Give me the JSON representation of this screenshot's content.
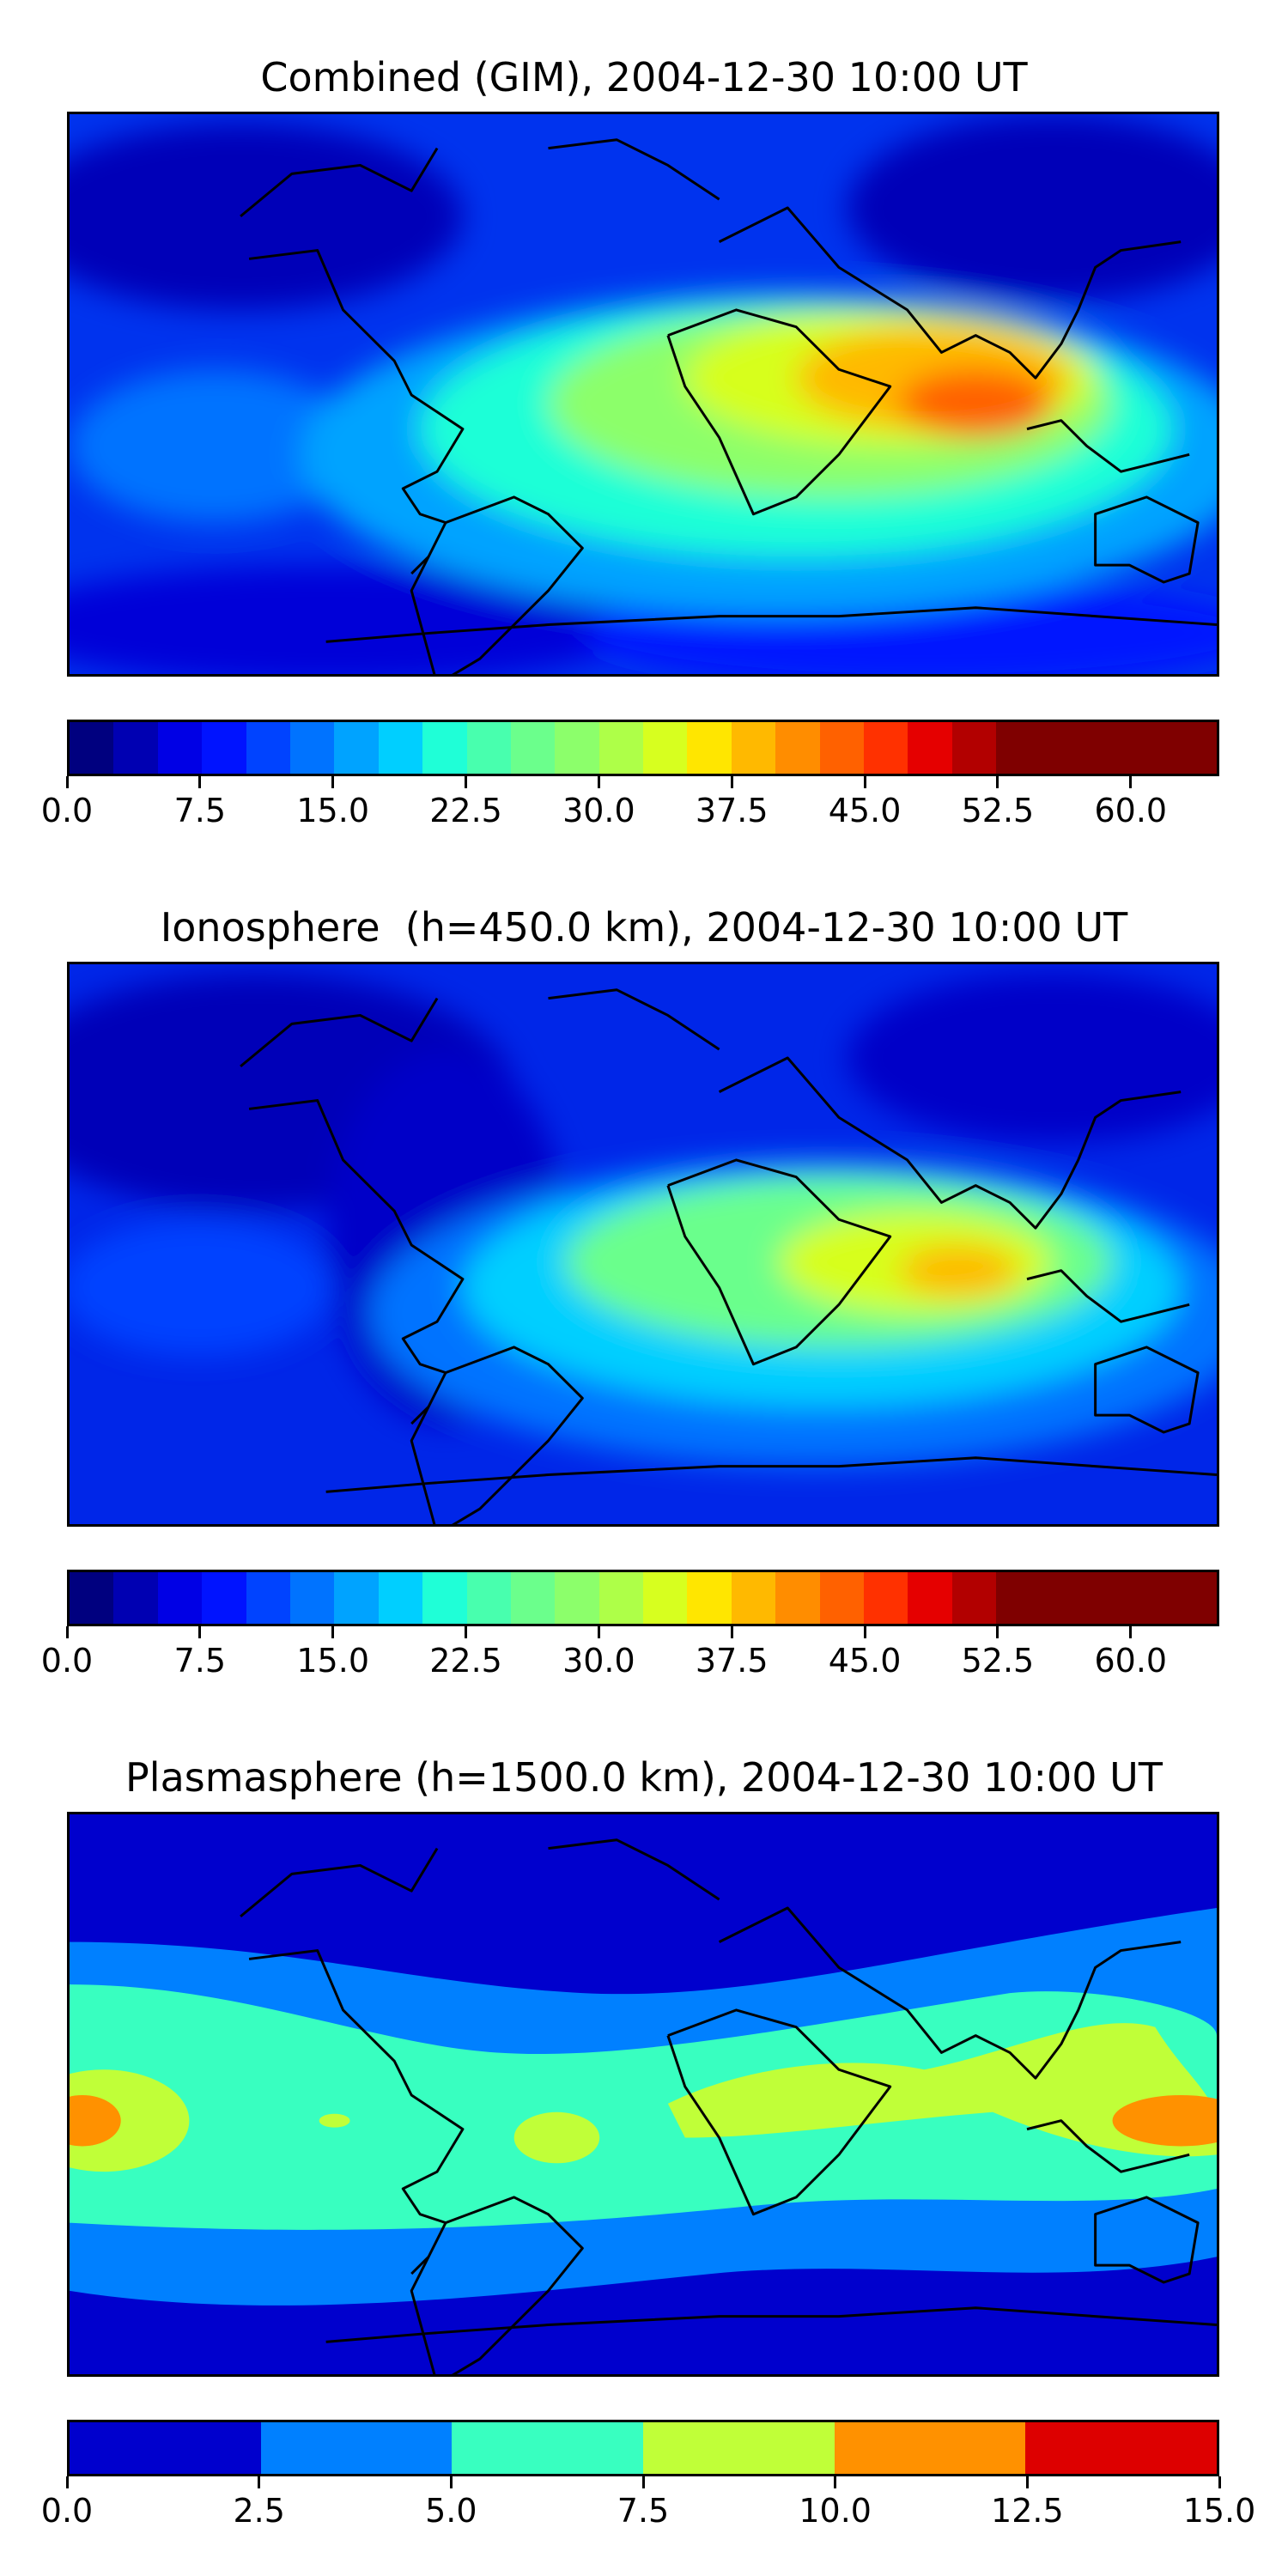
{
  "panels": [
    {
      "id": "combined",
      "title": "Combined (GIM), 2004-12-30 10:00 UT",
      "colorbar": {
        "levels": [
          0.0,
          2.5,
          5.0,
          7.5,
          10.0,
          12.5,
          15.0,
          17.5,
          20.0,
          22.5,
          25.0,
          27.5,
          30.0,
          32.5,
          35.0,
          37.5,
          40.0,
          42.5,
          45.0,
          47.5,
          50.0,
          52.5,
          55.0,
          57.5,
          60.0,
          62.5,
          65.0
        ],
        "tick_labels": [
          "0.0",
          "7.5",
          "15.0",
          "22.5",
          "30.0",
          "37.5",
          "45.0",
          "52.5",
          "60.0"
        ],
        "tick_values": [
          0.0,
          7.5,
          15.0,
          22.5,
          30.0,
          37.5,
          45.0,
          52.5,
          60.0
        ],
        "colors": [
          "#00007f",
          "#0000b2",
          "#0000e5",
          "#0013ff",
          "#0043ff",
          "#0073ff",
          "#00a3ff",
          "#00cfff",
          "#1fffd7",
          "#48ffae",
          "#6bff8c",
          "#8cff6b",
          "#aeff48",
          "#d7ff1f",
          "#ffe600",
          "#ffb900",
          "#ff8d00",
          "#ff6100",
          "#ff3100",
          "#e50000",
          "#b20000",
          "#7f0000",
          "#7f0000",
          "#7f0000",
          "#7f0000",
          "#7f0000"
        ]
      }
    },
    {
      "id": "ionosphere",
      "title": "Ionosphere  (h=450.0 km), 2004-12-30 10:00 UT",
      "colorbar": {
        "levels": [
          0.0,
          2.5,
          5.0,
          7.5,
          10.0,
          12.5,
          15.0,
          17.5,
          20.0,
          22.5,
          25.0,
          27.5,
          30.0,
          32.5,
          35.0,
          37.5,
          40.0,
          42.5,
          45.0,
          47.5,
          50.0,
          52.5,
          55.0,
          57.5,
          60.0,
          62.5,
          65.0
        ],
        "tick_labels": [
          "0.0",
          "7.5",
          "15.0",
          "22.5",
          "30.0",
          "37.5",
          "45.0",
          "52.5",
          "60.0"
        ],
        "tick_values": [
          0.0,
          7.5,
          15.0,
          22.5,
          30.0,
          37.5,
          45.0,
          52.5,
          60.0
        ],
        "colors": [
          "#00007f",
          "#0000b2",
          "#0000e5",
          "#0013ff",
          "#0043ff",
          "#0073ff",
          "#00a3ff",
          "#00cfff",
          "#1fffd7",
          "#48ffae",
          "#6bff8c",
          "#8cff6b",
          "#aeff48",
          "#d7ff1f",
          "#ffe600",
          "#ffb900",
          "#ff8d00",
          "#ff6100",
          "#ff3100",
          "#e50000",
          "#b20000",
          "#7f0000",
          "#7f0000",
          "#7f0000",
          "#7f0000",
          "#7f0000"
        ]
      }
    },
    {
      "id": "plasmasphere",
      "title": "Plasmasphere (h=1500.0 km), 2004-12-30 10:00 UT",
      "colorbar": {
        "levels": [
          0.0,
          2.5,
          5.0,
          7.5,
          10.0,
          12.5,
          15.0
        ],
        "tick_labels": [
          "0.0",
          "2.5",
          "5.0",
          "7.5",
          "10.0",
          "12.5",
          "15.0"
        ],
        "tick_values": [
          0.0,
          2.5,
          5.0,
          7.5,
          10.0,
          12.5,
          15.0
        ],
        "colors": [
          "#0000cd",
          "#0080ff",
          "#38ffc0",
          "#c0ff38",
          "#ff9100",
          "#dd0000"
        ]
      }
    }
  ]
}
